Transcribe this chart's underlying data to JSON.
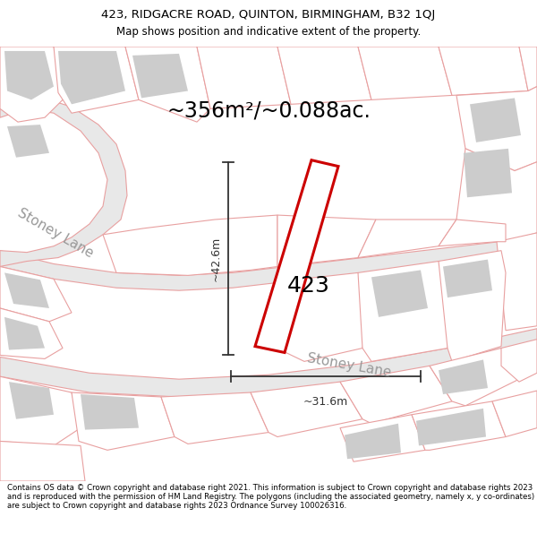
{
  "title": "423, RIDGACRE ROAD, QUINTON, BIRMINGHAM, B32 1QJ",
  "subtitle": "Map shows position and indicative extent of the property.",
  "area_label": "~356m²/~0.088ac.",
  "property_number": "423",
  "dim_vertical": "~42.6m",
  "dim_horizontal": "~31.6m",
  "road_label1": "Stoney Lane",
  "road_label2": "Stoney Lane",
  "footer": "Contains OS data © Crown copyright and database right 2021. This information is subject to Crown copyright and database rights 2023 and is reproduced with the permission of HM Land Registry. The polygons (including the associated geometry, namely x, y co-ordinates) are subject to Crown copyright and database rights 2023 Ordnance Survey 100026316.",
  "map_bg": "#ffffff",
  "road_fill": "#e8e8e8",
  "road_stroke": "#e8a0a0",
  "building_fill": "#cccccc",
  "parcel_stroke": "#e8a0a0",
  "property_stroke": "#cc0000",
  "dim_color": "#333333",
  "title_fontsize": 9.5,
  "subtitle_fontsize": 8.5,
  "area_fontsize": 17,
  "property_fontsize": 18,
  "road_fontsize": 11,
  "footer_fontsize": 6.2
}
